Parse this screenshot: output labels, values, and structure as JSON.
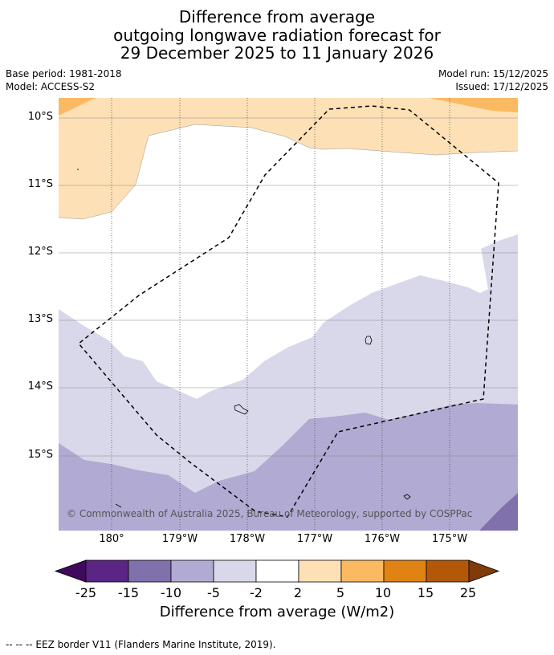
{
  "title": {
    "line1": "Difference from average",
    "line2": "outgoing longwave radiation forecast for",
    "line3": "29 December 2025 to 11 January 2026"
  },
  "meta": {
    "base_period": "Base period: 1981-2018",
    "model": "Model: ACCESS-S2",
    "model_run": "Model run: 15/12/2025",
    "issued": "Issued: 17/12/2025"
  },
  "map": {
    "lat_labels": [
      "10°S",
      "11°S",
      "12°S",
      "13°S",
      "14°S",
      "15°S"
    ],
    "lon_labels": [
      "180°",
      "179°W",
      "178°W",
      "177°W",
      "176°W",
      "175°W"
    ],
    "copyright": "© Commonwealth of Australia 2025, Bureau of Meteorology, supported by COSPPac"
  },
  "colorbar": {
    "ticks": [
      "-25",
      "-15",
      "-10",
      "-5",
      "-2",
      "2",
      "5",
      "10",
      "15",
      "25"
    ],
    "colors": [
      "#3f0a5e",
      "#5a2585",
      "#8070ab",
      "#b1aad2",
      "#d8d8ea",
      "#ffffff",
      "#fde0b5",
      "#fbb962",
      "#e08214",
      "#b35806",
      "#7f3b08"
    ],
    "label": "Difference from average (W/m2)"
  },
  "legend": {
    "eez": "--  --  -- EEZ border V11 (Flanders Marine Institute, 2019)."
  }
}
